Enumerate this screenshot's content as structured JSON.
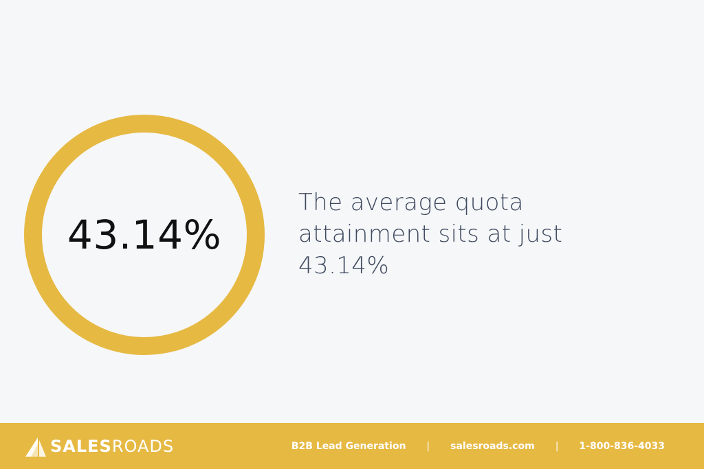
{
  "stat": {
    "value": "43.14%",
    "ring_color": "#e6b943"
  },
  "statement": {
    "text": "The average quota attainment sits at just 43.14%"
  },
  "footer": {
    "background": "#e6b943",
    "logo": {
      "bold": "SALES",
      "light": "ROADS",
      "icon": "sail-icon"
    },
    "tagline": "B2B Lead Generation",
    "website": "salesroads.com",
    "phone": "1-800-836-4033",
    "separator": "|"
  }
}
